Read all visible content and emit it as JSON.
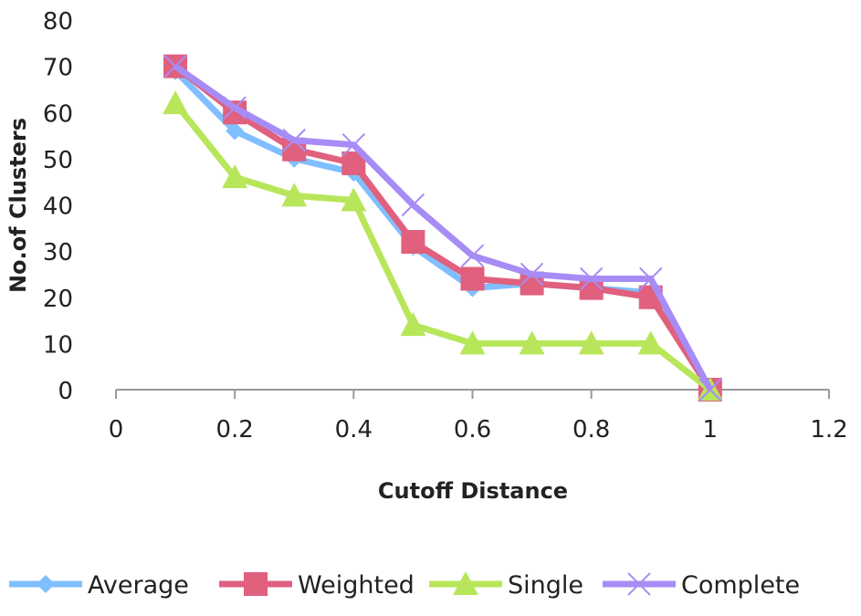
{
  "chart_data": {
    "type": "line",
    "title": "",
    "xlabel": "Cutoff Distance",
    "ylabel": "No.of Clusters",
    "x": [
      0.1,
      0.2,
      0.3,
      0.4,
      0.5,
      0.6,
      0.7,
      0.8,
      0.9,
      1.0
    ],
    "xlim": [
      0,
      1.2
    ],
    "ylim": [
      0,
      80
    ],
    "xticks": [
      "0",
      "0.2",
      "0.4",
      "0.6",
      "0.8",
      "1",
      "1.2"
    ],
    "yticks": [
      "0",
      "10",
      "20",
      "30",
      "40",
      "50",
      "60",
      "70",
      "80"
    ],
    "grid": false,
    "legend_position": "bottom",
    "series": [
      {
        "name": "Average",
        "color": "#7fbfff",
        "marker": "diamond",
        "values": [
          69,
          56,
          50,
          47,
          31,
          22,
          23,
          22,
          21,
          0
        ]
      },
      {
        "name": "Weighted",
        "color": "#e0607e",
        "marker": "square",
        "values": [
          70,
          60,
          52,
          49,
          32,
          24,
          23,
          22,
          20,
          0
        ]
      },
      {
        "name": "Single",
        "color": "#b8e65a",
        "marker": "triangle",
        "values": [
          62,
          46,
          42,
          41,
          14,
          10,
          10,
          10,
          10,
          0
        ]
      },
      {
        "name": "Complete",
        "color": "#a88cf5",
        "marker": "x",
        "values": [
          70,
          61,
          54,
          53,
          40,
          29,
          25,
          24,
          24,
          0
        ]
      }
    ]
  }
}
